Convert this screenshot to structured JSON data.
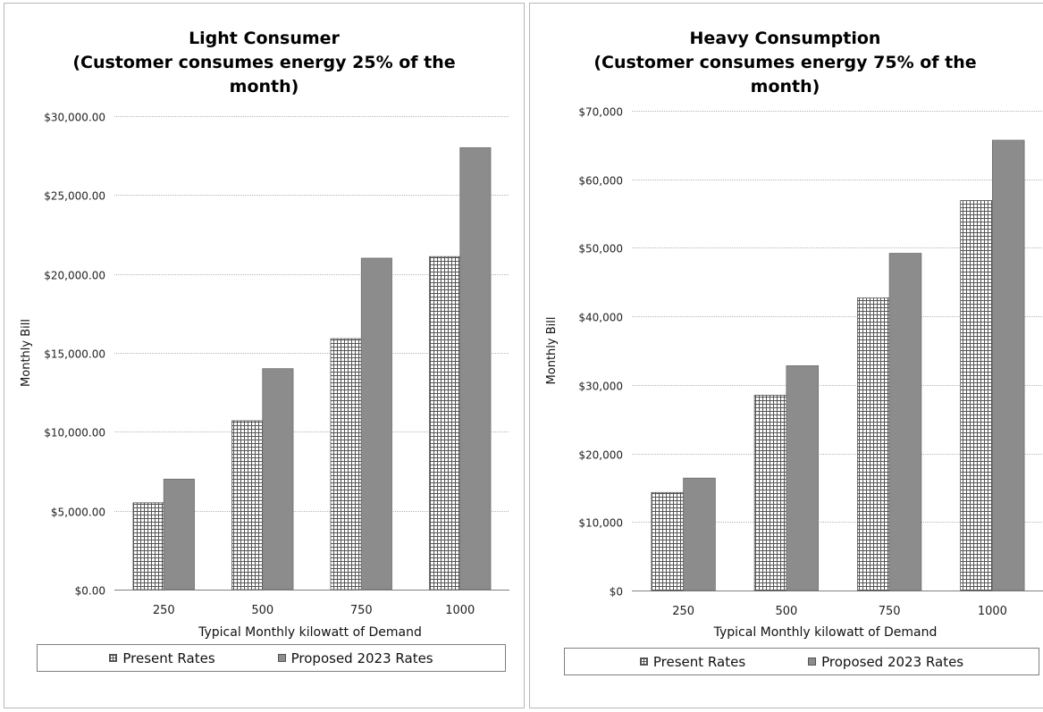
{
  "chart_data": [
    {
      "type": "bar",
      "title": [
        "Light Consumer",
        "(Customer consumes energy 25% of the",
        "month)"
      ],
      "xlabel": "Typical Monthly kilowatt of Demand",
      "ylabel": "Monthly Bill",
      "categories": [
        "250",
        "500",
        "750",
        "1000"
      ],
      "series": [
        {
          "name": "Present Rates",
          "values": [
            5500,
            10700,
            15900,
            21100
          ]
        },
        {
          "name": "Proposed 2023 Rates",
          "values": [
            7000,
            14000,
            21000,
            28000
          ]
        }
      ],
      "ylim": [
        0,
        30000
      ],
      "yticks": [
        0,
        5000,
        10000,
        15000,
        20000,
        25000,
        30000
      ],
      "ytick_labels": [
        "$0.00",
        "$5,000.00",
        "$10,000.00",
        "$15,000.00",
        "$20,000.00",
        "$25,000.00",
        "$30,000.00"
      ],
      "grid": true,
      "legend_position": "bottom"
    },
    {
      "type": "bar",
      "title": [
        "Heavy Consumption",
        "(Customer consumes energy 75% of the",
        "month)"
      ],
      "xlabel": "Typical Monthly kilowatt of Demand",
      "ylabel": "Monthly Bill",
      "categories": [
        "250",
        "500",
        "750",
        "1000"
      ],
      "series": [
        {
          "name": "Present Rates",
          "values": [
            14300,
            28500,
            42700,
            56900
          ]
        },
        {
          "name": "Proposed 2023 Rates",
          "values": [
            16400,
            32800,
            49200,
            65700
          ]
        }
      ],
      "ylim": [
        0,
        70000
      ],
      "yticks": [
        0,
        10000,
        20000,
        30000,
        40000,
        50000,
        60000,
        70000
      ],
      "ytick_labels": [
        "$0",
        "$10,000",
        "$20,000",
        "$30,000",
        "$40,000",
        "$50,000",
        "$60,000",
        "$70,000"
      ],
      "grid": true,
      "legend_position": "bottom"
    }
  ],
  "colors": {
    "present_pattern": "#555555",
    "proposed_fill": "#8c8c8c",
    "grid": "#b5b5b5",
    "axis": "#7f7f7f"
  }
}
